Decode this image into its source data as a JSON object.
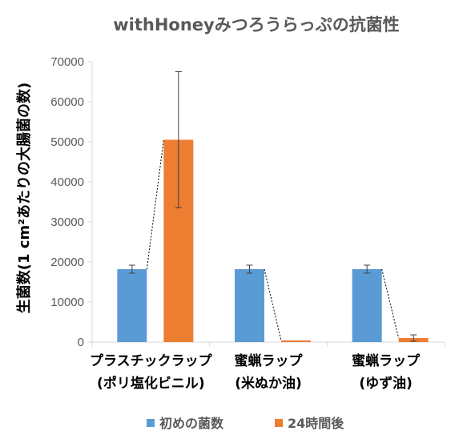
{
  "chart_data": {
    "type": "bar",
    "title": "withHoneyみつろうらっぷの抗菌性",
    "ylabel": "生菌数(1 cm²あたりの大腸菌の数)",
    "xlabel": "",
    "ylim": [
      0,
      70000
    ],
    "yticks": [
      0,
      10000,
      20000,
      30000,
      40000,
      50000,
      60000,
      70000
    ],
    "grid": false,
    "legend_position": "bottom",
    "categories": [
      [
        "プラスチックラップ",
        "(ポリ塩化ビニル)"
      ],
      [
        "蜜蝋ラップ",
        "(米ぬか油)"
      ],
      [
        "蜜蝋ラップ",
        "(ゆず油)"
      ]
    ],
    "series": [
      {
        "name": "初めの菌数",
        "color": "#5B9BD5",
        "values": [
          18200,
          18200,
          18200
        ],
        "errors": [
          1000,
          1000,
          1000
        ]
      },
      {
        "name": "24時間後",
        "color": "#ED7D31",
        "values": [
          50500,
          400,
          1000
        ],
        "errors": [
          17000,
          0,
          800
        ]
      }
    ],
    "connector_lines": true
  }
}
